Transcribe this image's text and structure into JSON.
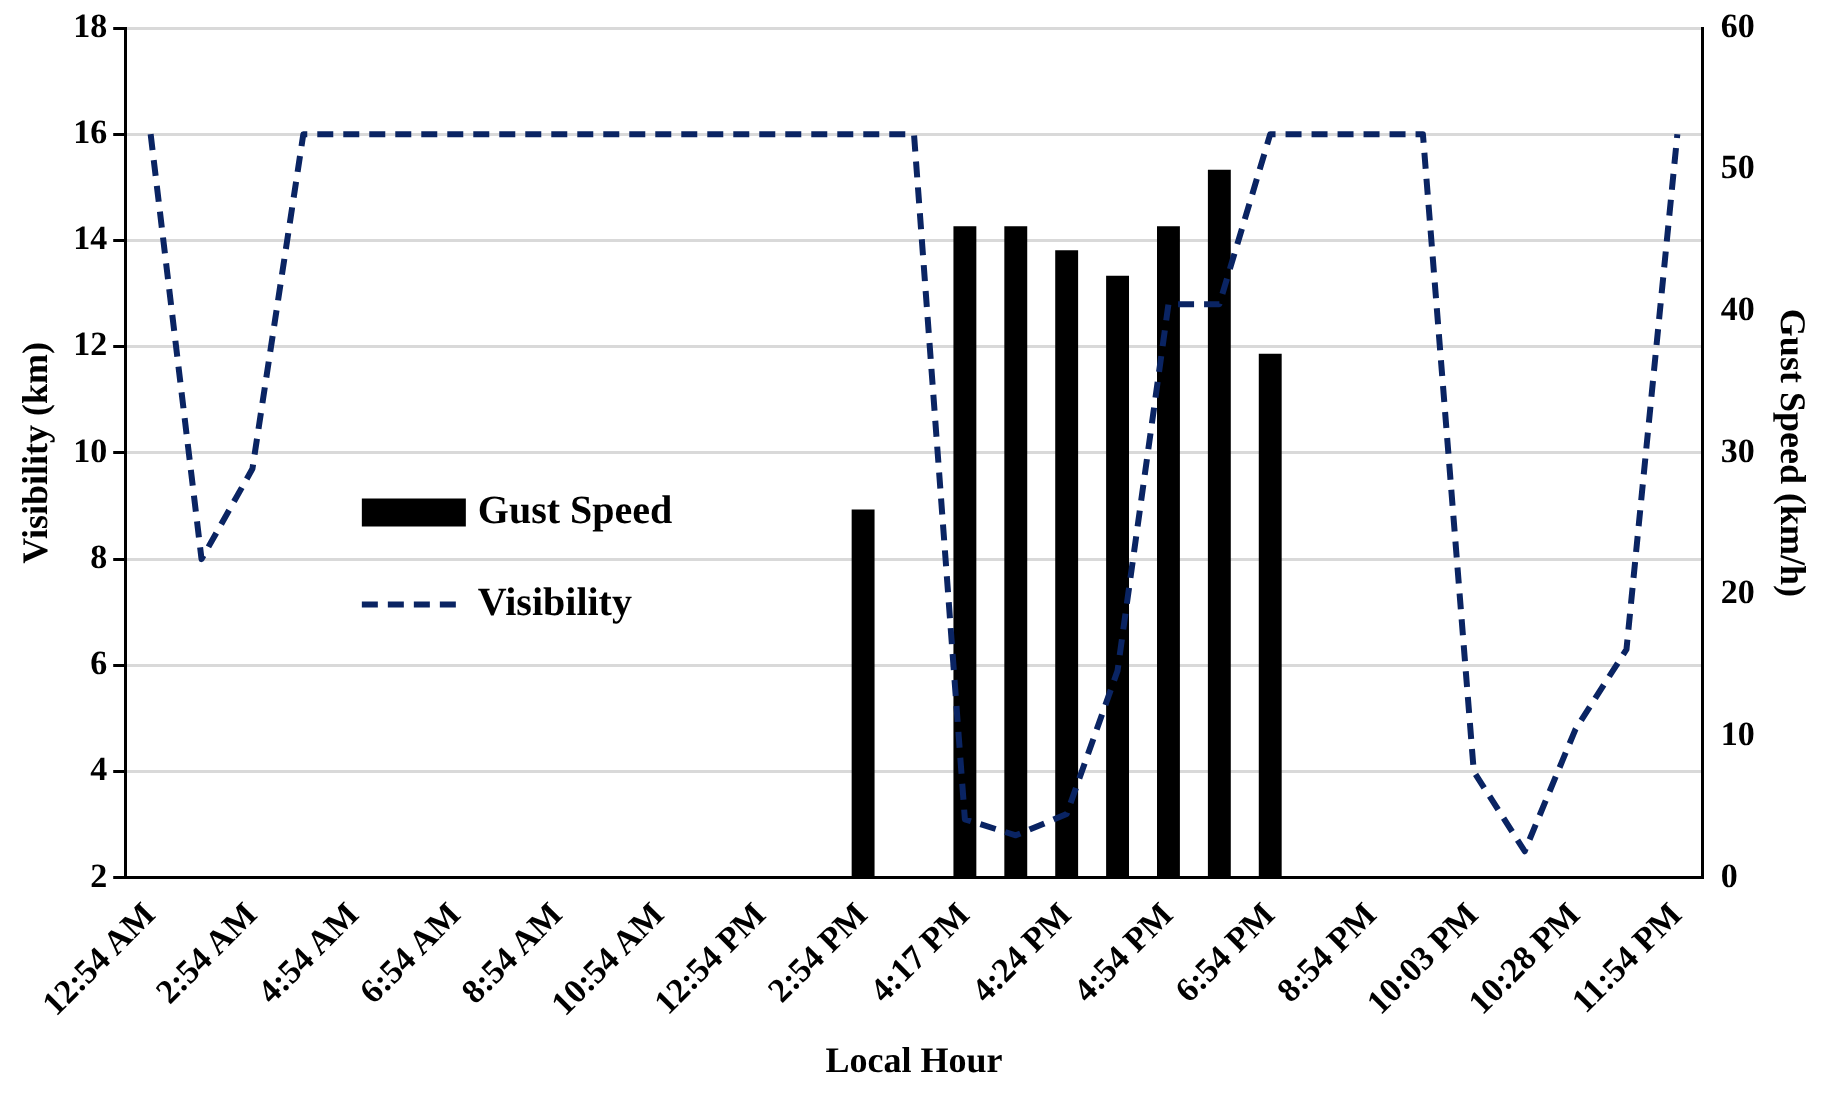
{
  "chart_data": {
    "type": "bar",
    "xlabel": "Local Hour",
    "ylabel": "Visibility (km)",
    "y2label": "Gust Speed (km/h)",
    "categories": [
      "12:54 AM",
      null,
      "2:54 AM",
      null,
      "4:54 AM",
      null,
      "6:54 AM",
      null,
      "8:54 AM",
      null,
      "10:54 AM",
      null,
      "12:54 PM",
      null,
      "2:54 PM",
      null,
      "4:17 PM",
      null,
      "4:24 PM",
      null,
      "4:54 PM",
      null,
      "6:54 PM",
      null,
      "8:54 PM",
      null,
      "10:03 PM",
      null,
      "10:28 PM",
      null,
      "11:54 PM"
    ],
    "series": [
      {
        "name": "Gust Speed",
        "axis": "y2",
        "color": "#000000",
        "values": [
          null,
          null,
          null,
          null,
          null,
          null,
          null,
          null,
          null,
          null,
          null,
          null,
          null,
          null,
          26,
          null,
          46,
          46,
          44.3,
          42.5,
          46,
          50,
          37,
          null,
          null,
          null,
          null,
          null,
          null,
          null,
          null
        ]
      },
      {
        "name": "Visibility",
        "type": "line",
        "axis": "y",
        "color": "#0a2463",
        "line_style": "dashed",
        "values": [
          16,
          8,
          9.7,
          16,
          16,
          16,
          16,
          16,
          16,
          16,
          16,
          16,
          16,
          16,
          16,
          16,
          3.1,
          2.8,
          3.2,
          5.9,
          12.8,
          12.8,
          16,
          16,
          16,
          16,
          4,
          2.5,
          4.8,
          6.3,
          16
        ]
      }
    ],
    "ylim": [
      2,
      18
    ],
    "yticks": [
      2,
      4,
      6,
      8,
      10,
      12,
      14,
      16,
      18
    ],
    "y2lim": [
      0,
      60
    ],
    "y2ticks": [
      0,
      10,
      20,
      30,
      40,
      50,
      60
    ],
    "grid": "y",
    "legend": "left",
    "marker": "none"
  }
}
